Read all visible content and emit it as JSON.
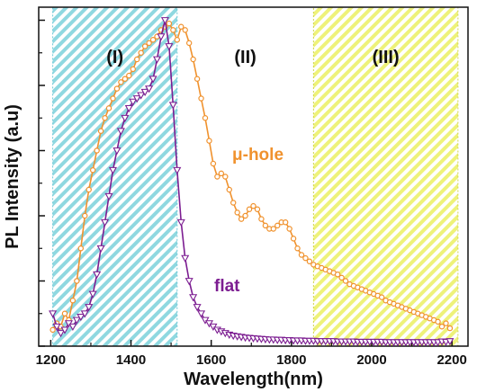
{
  "chart_data": {
    "type": "line",
    "xlabel": "Wavelength(nm)",
    "ylabel": "PL Intensity (a.u)",
    "xlim": [
      1170,
      2240
    ],
    "ylim": [
      0,
      1.04
    ],
    "x_ticks": [
      1200,
      1400,
      1600,
      1800,
      2000,
      2200
    ],
    "y_ticks": [
      0,
      0.2,
      0.4,
      0.6,
      0.8,
      1.0
    ],
    "y_tick_labels_shown": false,
    "grid": false,
    "regions": [
      {
        "label": "(I)",
        "x_start": 1205,
        "x_end": 1515,
        "color": "#8fd8e0",
        "pattern": "diagonal-hatch"
      },
      {
        "label": "(II)",
        "x_start": 1515,
        "x_end": 1855,
        "color": "#ffffff",
        "pattern": "none"
      },
      {
        "label": "(III)",
        "x_start": 1855,
        "x_end": 2215,
        "color": "#eef27a",
        "pattern": "diagonal-hatch"
      }
    ],
    "series": [
      {
        "name": "μ-hole",
        "color": "#f0922e",
        "marker": "circle",
        "x": [
          1205,
          1215,
          1225,
          1235,
          1245,
          1255,
          1265,
          1275,
          1285,
          1295,
          1305,
          1315,
          1325,
          1335,
          1345,
          1355,
          1365,
          1375,
          1385,
          1395,
          1405,
          1415,
          1425,
          1435,
          1445,
          1455,
          1465,
          1475,
          1485,
          1495,
          1505,
          1515,
          1525,
          1535,
          1545,
          1555,
          1565,
          1575,
          1585,
          1595,
          1605,
          1615,
          1625,
          1635,
          1645,
          1655,
          1665,
          1675,
          1685,
          1695,
          1705,
          1715,
          1725,
          1735,
          1745,
          1755,
          1765,
          1775,
          1785,
          1795,
          1805,
          1815,
          1825,
          1835,
          1845,
          1855,
          1865,
          1875,
          1885,
          1895,
          1905,
          1915,
          1925,
          1935,
          1945,
          1955,
          1965,
          1975,
          1985,
          1995,
          2005,
          2015,
          2025,
          2035,
          2045,
          2055,
          2065,
          2075,
          2085,
          2095,
          2105,
          2115,
          2125,
          2135,
          2145,
          2155,
          2165,
          2175,
          2185,
          2195
        ],
        "y": [
          0.05,
          0.07,
          0.06,
          0.1,
          0.08,
          0.14,
          0.2,
          0.3,
          0.4,
          0.48,
          0.54,
          0.6,
          0.66,
          0.7,
          0.73,
          0.76,
          0.79,
          0.81,
          0.82,
          0.83,
          0.85,
          0.88,
          0.9,
          0.92,
          0.93,
          0.94,
          0.95,
          0.97,
          0.98,
          0.99,
          0.97,
          0.94,
          0.98,
          0.97,
          0.93,
          0.88,
          0.82,
          0.76,
          0.7,
          0.63,
          0.56,
          0.52,
          0.53,
          0.52,
          0.48,
          0.44,
          0.41,
          0.39,
          0.4,
          0.42,
          0.43,
          0.42,
          0.39,
          0.37,
          0.36,
          0.36,
          0.37,
          0.38,
          0.38,
          0.36,
          0.33,
          0.3,
          0.28,
          0.27,
          0.26,
          0.25,
          0.245,
          0.24,
          0.235,
          0.23,
          0.225,
          0.22,
          0.21,
          0.2,
          0.19,
          0.185,
          0.18,
          0.175,
          0.17,
          0.165,
          0.16,
          0.155,
          0.15,
          0.14,
          0.135,
          0.13,
          0.125,
          0.12,
          0.115,
          0.11,
          0.105,
          0.1,
          0.095,
          0.09,
          0.085,
          0.08,
          0.075,
          0.06,
          0.07,
          0.055
        ]
      },
      {
        "name": "flat",
        "color": "#7c1d91",
        "marker": "triangle-down",
        "x": [
          1205,
          1215,
          1225,
          1235,
          1245,
          1255,
          1265,
          1275,
          1285,
          1295,
          1305,
          1315,
          1325,
          1335,
          1345,
          1355,
          1365,
          1375,
          1385,
          1395,
          1405,
          1415,
          1425,
          1435,
          1445,
          1455,
          1465,
          1475,
          1485,
          1495,
          1505,
          1515,
          1525,
          1535,
          1545,
          1555,
          1565,
          1575,
          1585,
          1595,
          1605,
          1615,
          1625,
          1635,
          1645,
          1655,
          1665,
          1675,
          1685,
          1695,
          1705,
          1715,
          1725,
          1735,
          1745,
          1755,
          1765,
          1775,
          1785,
          1795,
          1805,
          1815,
          1825,
          1835,
          1845,
          1855,
          1865,
          1875,
          1885,
          1895,
          1905,
          1915,
          1925,
          1935,
          1945,
          1955,
          1965,
          1975,
          1985,
          1995,
          2005,
          2015,
          2025,
          2035,
          2045,
          2055,
          2065,
          2075,
          2085,
          2095,
          2105,
          2115,
          2125,
          2135,
          2145,
          2155,
          2165,
          2175,
          2185,
          2195
        ],
        "y": [
          0.1,
          0.06,
          0.04,
          0.05,
          0.07,
          0.06,
          0.08,
          0.09,
          0.1,
          0.12,
          0.16,
          0.22,
          0.3,
          0.38,
          0.46,
          0.54,
          0.6,
          0.66,
          0.7,
          0.73,
          0.75,
          0.76,
          0.77,
          0.78,
          0.79,
          0.82,
          0.88,
          0.95,
          1.0,
          0.92,
          0.74,
          0.54,
          0.38,
          0.27,
          0.2,
          0.15,
          0.12,
          0.1,
          0.08,
          0.07,
          0.06,
          0.05,
          0.045,
          0.04,
          0.035,
          0.032,
          0.03,
          0.028,
          0.026,
          0.025,
          0.024,
          0.023,
          0.022,
          0.021,
          0.02,
          0.02,
          0.019,
          0.019,
          0.018,
          0.018,
          0.017,
          0.017,
          0.017,
          0.016,
          0.016,
          0.016,
          0.015,
          0.015,
          0.015,
          0.015,
          0.015,
          0.014,
          0.014,
          0.014,
          0.014,
          0.014,
          0.013,
          0.013,
          0.013,
          0.013,
          0.013,
          0.013,
          0.013,
          0.012,
          0.012,
          0.012,
          0.012,
          0.012,
          0.012,
          0.012,
          0.012,
          0.012,
          0.012,
          0.012,
          0.012,
          0.012,
          0.012,
          0.014,
          0.013,
          0.015
        ]
      }
    ]
  }
}
